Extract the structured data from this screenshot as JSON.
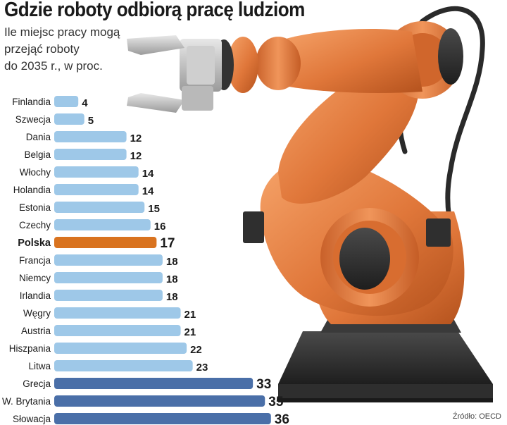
{
  "title": "Gdzie roboty odbiorą pracę ludziom",
  "subtitle": "Ile miejsc pracy mogą\nprzejąć roboty\ndo 2035 r., w proc.",
  "source": "Źródło: OECD",
  "colors": {
    "light_blue": "#9ec8e8",
    "dark_blue": "#4a6fa8",
    "highlight_orange": "#d9731f",
    "robot_orange": "#e0773a"
  },
  "chart_data": {
    "type": "bar",
    "orientation": "horizontal",
    "categories": [
      "Finlandia",
      "Szwecja",
      "Dania",
      "Belgia",
      "Włochy",
      "Holandia",
      "Estonia",
      "Czechy",
      "Polska",
      "Francja",
      "Niemcy",
      "Irlandia",
      "Węgry",
      "Austria",
      "Hiszpania",
      "Litwa",
      "Grecja",
      "W. Brytania",
      "Słowacja"
    ],
    "values": [
      4,
      5,
      12,
      12,
      14,
      14,
      15,
      16,
      17,
      18,
      18,
      18,
      21,
      21,
      22,
      23,
      33,
      35,
      36
    ],
    "value_labels": [
      "4",
      "5",
      "12",
      "12",
      "14",
      "14",
      "15",
      "16",
      "17",
      "18",
      "18",
      "18",
      "21",
      "21",
      "22",
      "23",
      "33",
      "35",
      "36"
    ],
    "highlight": "Polska",
    "xlim": [
      0,
      36
    ],
    "grid": false,
    "legend": "none"
  }
}
